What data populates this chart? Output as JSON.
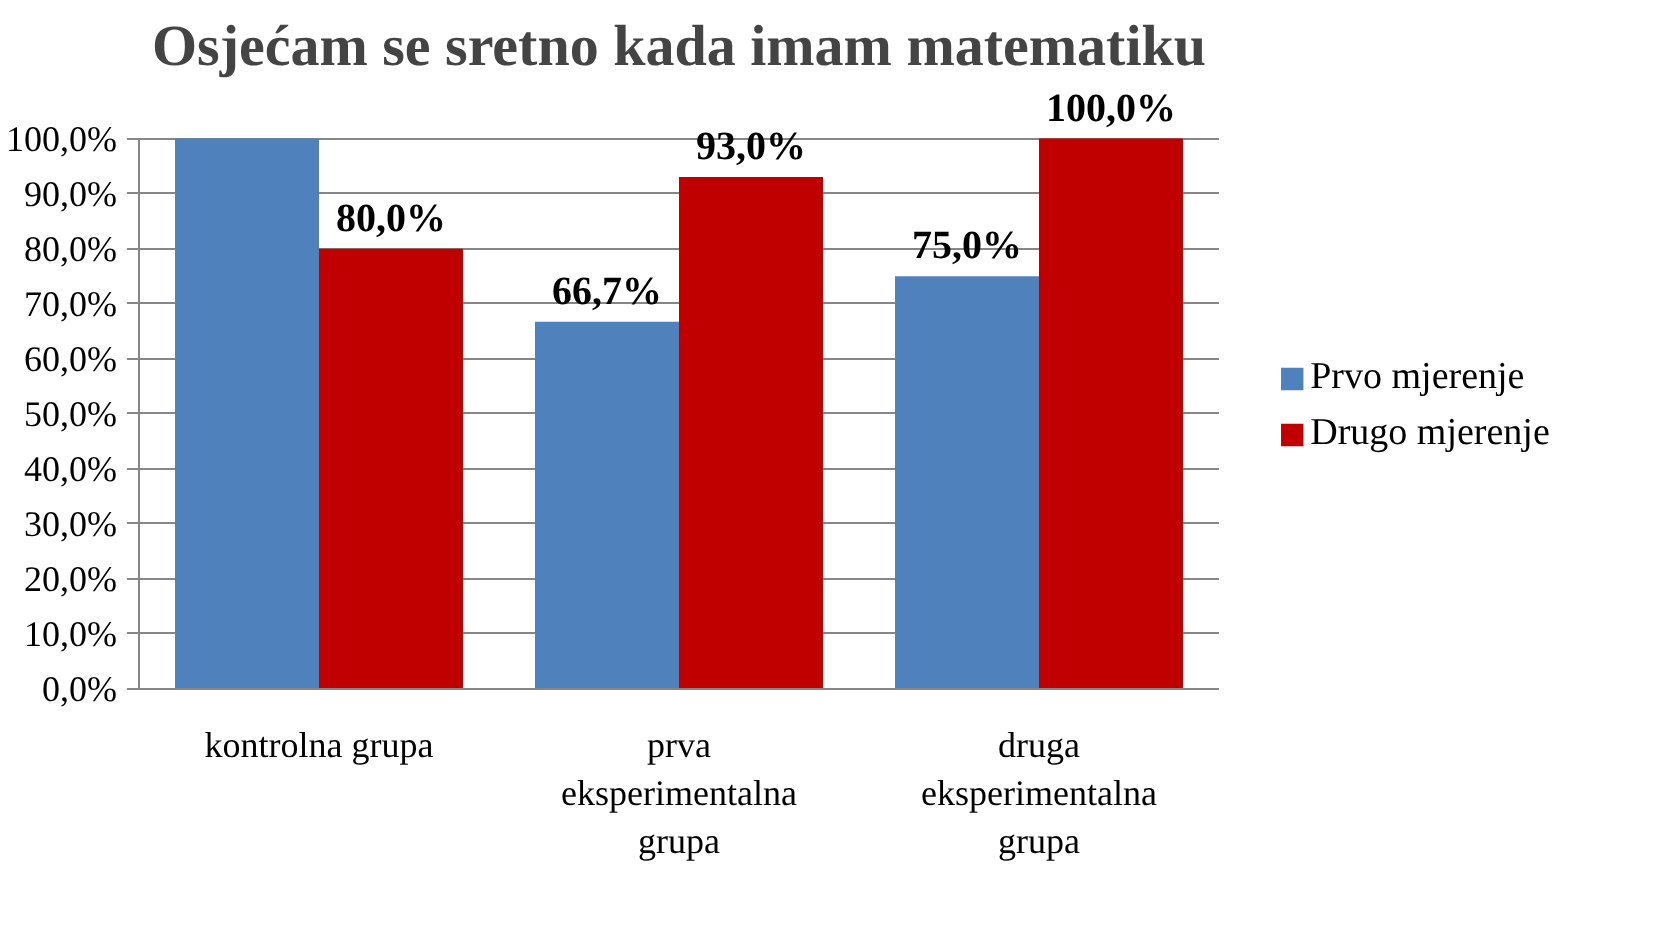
{
  "chart_data": {
    "type": "bar",
    "title": "Osjećam se sretno kada imam matematiku",
    "categories": [
      "kontrolna grupa",
      "prva eksperimentalna grupa",
      "druga eksperimentalna grupa"
    ],
    "series": [
      {
        "name": "Prvo mjerenje",
        "color": "#4f81bd",
        "values": [
          100.0,
          66.7,
          75.0
        ],
        "value_labels": [
          null,
          "66,7%",
          "75,0%"
        ]
      },
      {
        "name": "Drugo mjerenje",
        "color": "#c00000",
        "values": [
          80.0,
          93.0,
          100.0
        ],
        "value_labels": [
          "80,0%",
          "93,0%",
          "100,0%"
        ]
      }
    ],
    "ylim": [
      0,
      100
    ],
    "yticks": [
      {
        "value": 0,
        "label": "0,0%"
      },
      {
        "value": 10,
        "label": "10,0%"
      },
      {
        "value": 20,
        "label": "20,0%"
      },
      {
        "value": 30,
        "label": "30,0%"
      },
      {
        "value": 40,
        "label": "40,0%"
      },
      {
        "value": 50,
        "label": "50,0%"
      },
      {
        "value": 60,
        "label": "60,0%"
      },
      {
        "value": 70,
        "label": "70,0%"
      },
      {
        "value": 80,
        "label": "80,0%"
      },
      {
        "value": 90,
        "label": "90,0%"
      },
      {
        "value": 100,
        "label": "100,0%"
      }
    ],
    "grid": "y",
    "legend": "right"
  }
}
